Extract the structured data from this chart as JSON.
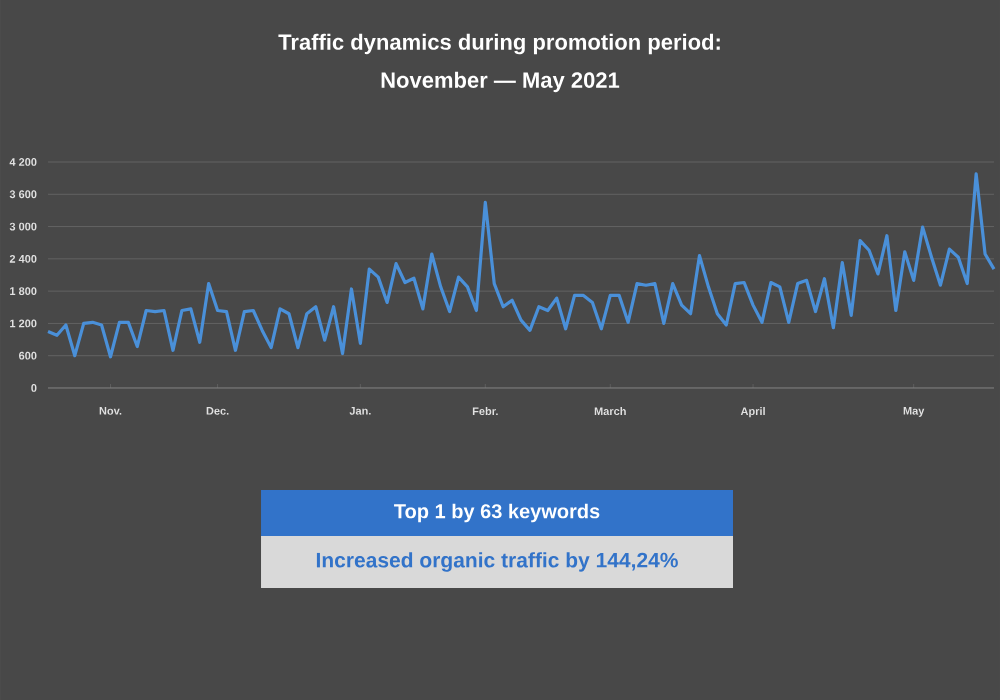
{
  "chart_data": {
    "type": "line",
    "title": "Traffic dynamics during promotion period:",
    "subtitle": "November — May 2021",
    "categories": [
      null,
      null,
      null,
      null,
      null,
      null,
      null,
      "Nov.",
      null,
      null,
      null,
      null,
      null,
      null,
      null,
      null,
      null,
      null,
      null,
      "Dec.",
      null,
      null,
      null,
      null,
      null,
      null,
      null,
      null,
      null,
      null,
      null,
      null,
      null,
      null,
      null,
      "Jan.",
      null,
      null,
      null,
      null,
      null,
      null,
      null,
      null,
      null,
      null,
      null,
      null,
      null,
      "Febr.",
      null,
      null,
      null,
      null,
      null,
      null,
      null,
      null,
      null,
      null,
      null,
      null,
      null,
      "March",
      null,
      null,
      null,
      null,
      null,
      null,
      null,
      null,
      null,
      null,
      null,
      null,
      null,
      null,
      null,
      "April",
      null,
      null,
      null,
      null,
      null,
      null,
      null,
      null,
      null,
      null,
      null,
      null,
      null,
      null,
      null,
      null,
      null,
      "May",
      null,
      null,
      null,
      null,
      null,
      null,
      null,
      null,
      null
    ],
    "series": [
      {
        "color": "#4a90d9",
        "values": [
          1050,
          980,
          1170,
          600,
          1200,
          1220,
          1170,
          580,
          1220,
          1220,
          770,
          1440,
          1420,
          1440,
          700,
          1440,
          1470,
          850,
          1940,
          1440,
          1420,
          700,
          1420,
          1440,
          1070,
          750,
          1470,
          1380,
          750,
          1380,
          1510,
          890,
          1510,
          640,
          1840,
          830,
          2210,
          2060,
          1590,
          2310,
          1960,
          2040,
          1470,
          2490,
          1880,
          1420,
          2060,
          1880,
          1440,
          3450,
          1940,
          1510,
          1630,
          1260,
          1070,
          1510,
          1440,
          1670,
          1100,
          1720,
          1720,
          1590,
          1100,
          1720,
          1720,
          1220,
          1940,
          1910,
          1940,
          1200,
          1940,
          1540,
          1380,
          2460,
          1880,
          1380,
          1170,
          1940,
          1960,
          1540,
          1220,
          1960,
          1880,
          1220,
          1940,
          2000,
          1420,
          2030,
          1120,
          2330,
          1350,
          2740,
          2560,
          2120,
          2830,
          1440,
          2530,
          2000,
          2990,
          2430,
          1910,
          2580,
          2430,
          1940,
          3980,
          2490,
          2210
        ]
      }
    ],
    "ylim": [
      0,
      4200
    ],
    "yticks": [
      0,
      600,
      {
        "value": 1200,
        "label": "1 200"
      },
      {
        "value": 1800,
        "label": "1 800"
      },
      {
        "value": 2400,
        "label": "2 400"
      },
      {
        "value": 3000,
        "label": "3 000"
      },
      {
        "value": 3600,
        "label": "3 600"
      },
      {
        "value": 4200,
        "label": "4 200"
      }
    ],
    "grid": "y",
    "marker": "none",
    "line_style": "solid",
    "annotations": [
      "Top 1 by 63 keywords",
      "Increased organic traffic by 144,24%"
    ]
  }
}
